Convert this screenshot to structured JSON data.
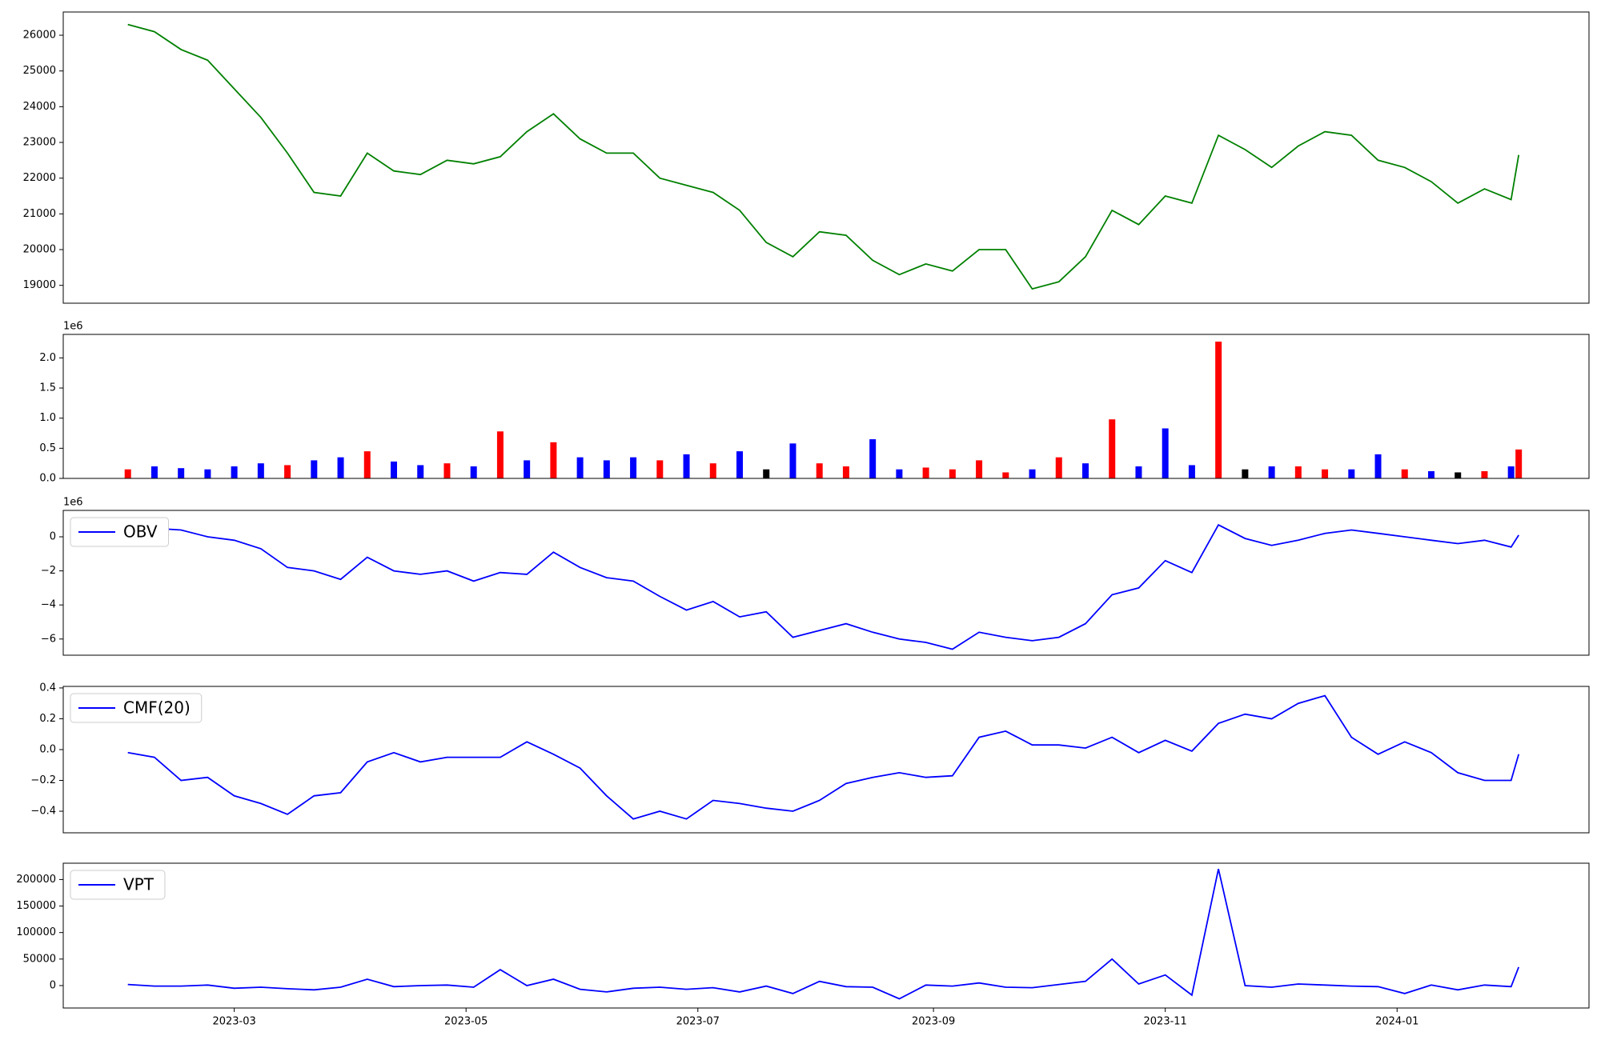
{
  "chart_data": [
    {
      "type": "line",
      "x": [
        19389,
        19396,
        19403,
        19410,
        19417,
        19424,
        19431,
        19438,
        19445,
        19452,
        19459,
        19466,
        19473,
        19480,
        19487,
        19494,
        19501,
        19508,
        19515,
        19522,
        19529,
        19536,
        19543,
        19550,
        19557,
        19564,
        19571,
        19578,
        19585,
        19592,
        19599,
        19606,
        19613,
        19620,
        19627,
        19634,
        19641,
        19648,
        19655,
        19662,
        19669,
        19676,
        19683,
        19690,
        19697,
        19704,
        19711,
        19718,
        19725,
        19732,
        19739,
        19746,
        19753,
        19755
      ],
      "xlim": [
        19372,
        19773.5
      ],
      "ylim": [
        18500,
        26650
      ],
      "yticks": [
        19000,
        20000,
        21000,
        22000,
        23000,
        24000,
        25000,
        26000
      ],
      "series": [
        {
          "color": "#008000",
          "values": [
            26300,
            26100,
            25600,
            25300,
            24500,
            23700,
            22700,
            21600,
            21500,
            22700,
            22200,
            22100,
            22500,
            22400,
            22600,
            23300,
            23800,
            23100,
            22700,
            22700,
            22000,
            21800,
            21600,
            21100,
            20200,
            19800,
            20500,
            20400,
            19700,
            19300,
            19600,
            19400,
            20000,
            20000,
            18900,
            19100,
            19800,
            21100,
            20700,
            21500,
            21300,
            23200,
            22800,
            22300,
            22900,
            23300,
            23200,
            22500,
            22300,
            21900,
            21300,
            21700,
            21400,
            22650
          ]
        }
      ]
    },
    {
      "type": "bar",
      "x": [
        19389,
        19396,
        19403,
        19410,
        19417,
        19424,
        19431,
        19438,
        19445,
        19452,
        19459,
        19466,
        19473,
        19480,
        19487,
        19494,
        19501,
        19508,
        19515,
        19522,
        19529,
        19536,
        19543,
        19550,
        19557,
        19564,
        19571,
        19578,
        19585,
        19592,
        19599,
        19606,
        19613,
        19620,
        19627,
        19634,
        19641,
        19648,
        19655,
        19662,
        19669,
        19676,
        19683,
        19690,
        19697,
        19704,
        19711,
        19718,
        19725,
        19732,
        19739,
        19746,
        19753,
        19755
      ],
      "xlim": [
        19372,
        19773.5
      ],
      "ylim": [
        0,
        2.39
      ],
      "y_offset_label": "1e6",
      "yticks": [
        {
          "value": 0,
          "label": "0.0"
        },
        {
          "value": 0.5,
          "label": "0.5"
        },
        {
          "value": 1,
          "label": "1.0"
        },
        {
          "value": 1.5,
          "label": "1.5"
        },
        {
          "value": 2,
          "label": "2.0"
        }
      ],
      "values": [
        0.15,
        0.2,
        0.17,
        0.15,
        0.2,
        0.25,
        0.22,
        0.3,
        0.35,
        0.45,
        0.28,
        0.22,
        0.25,
        0.2,
        0.78,
        0.3,
        0.6,
        0.35,
        0.3,
        0.35,
        0.3,
        0.4,
        0.25,
        0.45,
        0.15,
        0.58,
        0.25,
        0.2,
        0.65,
        0.15,
        0.18,
        0.15,
        0.3,
        0.1,
        0.15,
        0.35,
        0.25,
        0.98,
        0.2,
        0.83,
        0.22,
        2.27,
        0.15,
        0.2,
        0.2,
        0.15,
        0.15,
        0.4,
        0.15,
        0.12,
        0.1,
        0.12,
        0.2,
        0.48
      ],
      "colors": [
        "red",
        "blue",
        "blue",
        "blue",
        "blue",
        "blue",
        "red",
        "blue",
        "blue",
        "red",
        "blue",
        "blue",
        "red",
        "blue",
        "red",
        "blue",
        "red",
        "blue",
        "blue",
        "blue",
        "red",
        "blue",
        "red",
        "blue",
        "black",
        "blue",
        "red",
        "red",
        "blue",
        "blue",
        "red",
        "red",
        "red",
        "red",
        "blue",
        "red",
        "blue",
        "red",
        "blue",
        "blue",
        "blue",
        "red",
        "black",
        "blue",
        "red",
        "red",
        "blue",
        "blue",
        "red",
        "blue",
        "black",
        "red",
        "blue",
        "red"
      ]
    },
    {
      "type": "line",
      "x": [
        19389,
        19396,
        19403,
        19410,
        19417,
        19424,
        19431,
        19438,
        19445,
        19452,
        19459,
        19466,
        19473,
        19480,
        19487,
        19494,
        19501,
        19508,
        19515,
        19522,
        19529,
        19536,
        19543,
        19550,
        19557,
        19564,
        19571,
        19578,
        19585,
        19592,
        19599,
        19606,
        19613,
        19620,
        19627,
        19634,
        19641,
        19648,
        19655,
        19662,
        19669,
        19676,
        19683,
        19690,
        19697,
        19704,
        19711,
        19718,
        19725,
        19732,
        19739,
        19746,
        19753,
        19755
      ],
      "xlim": [
        19372,
        19773.5
      ],
      "ylim": [
        -6.95,
        1.55
      ],
      "y_offset_label": "1e6",
      "legend": "upper left",
      "yticks": [
        {
          "value": -6,
          "label": "−6"
        },
        {
          "value": -4,
          "label": "−4"
        },
        {
          "value": -2,
          "label": "−2"
        },
        0
      ],
      "series": [
        {
          "name": "OBV",
          "color": "#0000ff",
          "values": [
            1.1,
            0.5,
            0.4,
            0,
            -0.2,
            -0.7,
            -1.8,
            -2.0,
            -2.5,
            -1.2,
            -2.0,
            -2.2,
            -2.0,
            -2.6,
            -2.1,
            -2.2,
            -0.9,
            -1.8,
            -2.4,
            -2.6,
            -3.5,
            -4.3,
            -3.8,
            -4.7,
            -4.4,
            -5.9,
            -5.5,
            -5.1,
            -5.6,
            -6.0,
            -6.2,
            -6.6,
            -5.6,
            -5.9,
            -6.1,
            -5.9,
            -5.1,
            -3.4,
            -3.0,
            -1.4,
            -2.1,
            0.7,
            -0.1,
            -0.5,
            -0.2,
            0.2,
            0.4,
            0.2,
            0,
            -0.2,
            -0.4,
            -0.2,
            -0.6,
            0.1
          ]
        }
      ]
    },
    {
      "type": "line",
      "x": [
        19389,
        19396,
        19403,
        19410,
        19417,
        19424,
        19431,
        19438,
        19445,
        19452,
        19459,
        19466,
        19473,
        19480,
        19487,
        19494,
        19501,
        19508,
        19515,
        19522,
        19529,
        19536,
        19543,
        19550,
        19557,
        19564,
        19571,
        19578,
        19585,
        19592,
        19599,
        19606,
        19613,
        19620,
        19627,
        19634,
        19641,
        19648,
        19655,
        19662,
        19669,
        19676,
        19683,
        19690,
        19697,
        19704,
        19711,
        19718,
        19725,
        19732,
        19739,
        19746,
        19753,
        19755
      ],
      "xlim": [
        19372,
        19773.5
      ],
      "ylim": [
        -0.54,
        0.41
      ],
      "legend": "upper left",
      "yticks": [
        {
          "value": -0.4,
          "label": "−0.4"
        },
        {
          "value": -0.2,
          "label": "−0.2"
        },
        {
          "value": 0,
          "label": "0.0"
        },
        0.2,
        0.4
      ],
      "series": [
        {
          "name": "CMF(20)",
          "color": "#0000ff",
          "values": [
            -0.02,
            -0.05,
            -0.2,
            -0.18,
            -0.3,
            -0.35,
            -0.42,
            -0.3,
            -0.28,
            -0.08,
            -0.02,
            -0.08,
            -0.05,
            -0.05,
            -0.05,
            0.05,
            -0.03,
            -0.12,
            -0.3,
            -0.45,
            -0.4,
            -0.45,
            -0.33,
            -0.35,
            -0.38,
            -0.4,
            -0.33,
            -0.22,
            -0.18,
            -0.15,
            -0.18,
            -0.17,
            0.08,
            0.12,
            0.03,
            0.03,
            0.01,
            0.08,
            -0.02,
            0.06,
            -0.01,
            0.17,
            0.23,
            0.2,
            0.3,
            0.35,
            0.08,
            -0.03,
            0.05,
            -0.02,
            -0.15,
            -0.2,
            -0.2,
            -0.03
          ]
        }
      ]
    },
    {
      "type": "line",
      "x": [
        19389,
        19396,
        19403,
        19410,
        19417,
        19424,
        19431,
        19438,
        19445,
        19452,
        19459,
        19466,
        19473,
        19480,
        19487,
        19494,
        19501,
        19508,
        19515,
        19522,
        19529,
        19536,
        19543,
        19550,
        19557,
        19564,
        19571,
        19578,
        19585,
        19592,
        19599,
        19606,
        19613,
        19620,
        19627,
        19634,
        19641,
        19648,
        19655,
        19662,
        19669,
        19676,
        19683,
        19690,
        19697,
        19704,
        19711,
        19718,
        19725,
        19732,
        19739,
        19746,
        19753,
        19755
      ],
      "xlim": [
        19372,
        19773.5
      ],
      "ylim": [
        -42300,
        230800
      ],
      "legend": "upper left",
      "yticks": [
        0,
        50000,
        100000,
        150000,
        200000
      ],
      "xticks": [
        {
          "value": 19417,
          "label": "2023-03"
        },
        {
          "value": 19478,
          "label": "2023-05"
        },
        {
          "value": 19539,
          "label": "2023-07"
        },
        {
          "value": 19601,
          "label": "2023-09"
        },
        {
          "value": 19662,
          "label": "2023-11"
        },
        {
          "value": 19723,
          "label": "2024-01"
        }
      ],
      "series": [
        {
          "name": "VPT",
          "color": "#0000ff",
          "values": [
            2000,
            -1000,
            -1000,
            1000,
            -5000,
            -3000,
            -6000,
            -8000,
            -3000,
            12000,
            -2000,
            0,
            1000,
            -3000,
            30000,
            0,
            12000,
            -7000,
            -12000,
            -5000,
            -3000,
            -7000,
            -4000,
            -12000,
            -1000,
            -15000,
            8000,
            -2000,
            -3000,
            -25000,
            1000,
            -1000,
            5000,
            -3000,
            -4000,
            2000,
            8000,
            50000,
            3000,
            20000,
            -18000,
            220000,
            0,
            -3000,
            3000,
            1000,
            -1000,
            -2000,
            -15000,
            1000,
            -8000,
            1000,
            -2000,
            35000
          ]
        }
      ]
    }
  ]
}
